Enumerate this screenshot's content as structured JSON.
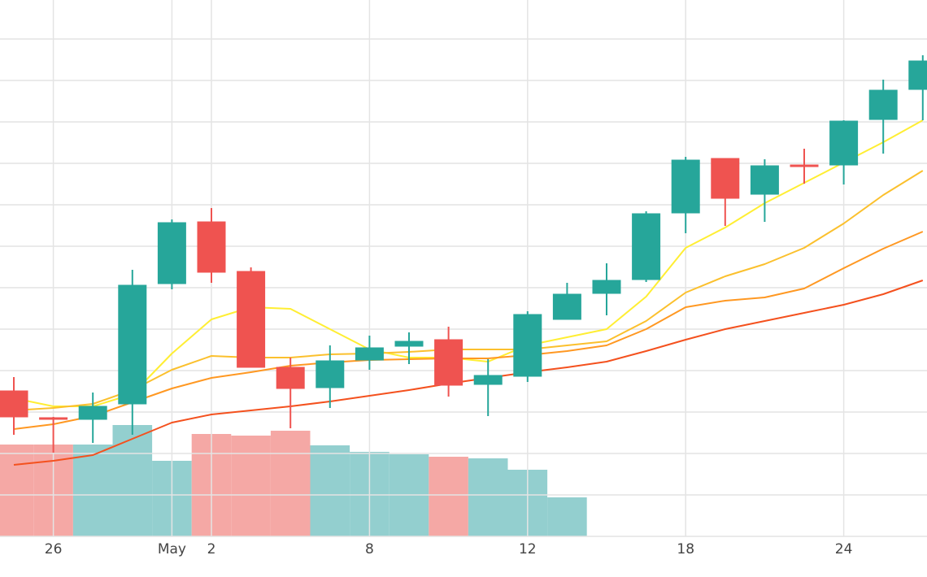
{
  "chart_data": {
    "type": "candlestick",
    "categories": [
      null,
      "26",
      null,
      null,
      "May",
      "2",
      null,
      null,
      null,
      "8",
      null,
      null,
      null,
      "12",
      null,
      null,
      null,
      "18",
      null,
      null,
      null,
      "24",
      null,
      null
    ],
    "open": [
      179,
      146,
      144,
      163,
      311,
      387,
      326,
      208,
      183,
      217,
      234,
      242,
      187,
      197,
      267,
      299,
      316,
      398,
      465,
      421,
      457,
      457,
      513,
      550
    ],
    "high": [
      196,
      147,
      177,
      328,
      390,
      404,
      331,
      220,
      235,
      247,
      251,
      258,
      218,
      277,
      312,
      336,
      400,
      467,
      465,
      464,
      477,
      512,
      562,
      592
    ],
    "low": [
      125,
      103,
      115,
      125,
      304,
      312,
      208,
      133,
      158,
      205,
      212,
      172,
      148,
      190,
      267,
      272,
      313,
      373,
      382,
      387,
      434,
      433,
      471,
      512
    ],
    "close": [
      147,
      144,
      160,
      309,
      386,
      325,
      208,
      182,
      216,
      232,
      240,
      186,
      198,
      273,
      298,
      315,
      397,
      463,
      416,
      456,
      456,
      511,
      549,
      585
    ],
    "up_color": "#26a69a",
    "down_color": "#ef5350",
    "ylim": [
      0,
      660
    ],
    "yticks": [
      0,
      51,
      102,
      153,
      204,
      255,
      306,
      357,
      408,
      459,
      510,
      561,
      612
    ],
    "grid": true,
    "volume": {
      "values": [
        113,
        113,
        113,
        137,
        93,
        126,
        124,
        130,
        112,
        104,
        101,
        98,
        96,
        82,
        48,
        null,
        null,
        null,
        null,
        null,
        null,
        null,
        null,
        null
      ],
      "up_color": "#93cfcf",
      "down_color": "#f5a8a5",
      "y2lim": [
        0,
        660
      ]
    },
    "moving_averages": [
      {
        "color": "#ffee33",
        "values": [
          170,
          160,
          160,
          175,
          225,
          267,
          282,
          280,
          255,
          230,
          220,
          220,
          215,
          235,
          245,
          255,
          295,
          355,
          380,
          410,
          435,
          460,
          485,
          512
        ]
      },
      {
        "color": "#fbc02d",
        "values": [
          155,
          158,
          163,
          180,
          205,
          222,
          220,
          220,
          224,
          225,
          227,
          230,
          230,
          230,
          235,
          240,
          265,
          300,
          320,
          335,
          355,
          385,
          420,
          450
        ]
      },
      {
        "color": "#ff9822",
        "values": [
          132,
          138,
          148,
          165,
          182,
          195,
          202,
          210,
          214,
          217,
          218,
          219,
          219,
          223,
          228,
          235,
          255,
          282,
          290,
          294,
          305,
          330,
          354,
          375
        ]
      },
      {
        "color": "#f4511e",
        "values": [
          88,
          93,
          100,
          120,
          140,
          150,
          155,
          160,
          166,
          173,
          180,
          188,
          195,
          202,
          208,
          215,
          228,
          242,
          255,
          265,
          275,
          285,
          298,
          315
        ]
      }
    ]
  }
}
